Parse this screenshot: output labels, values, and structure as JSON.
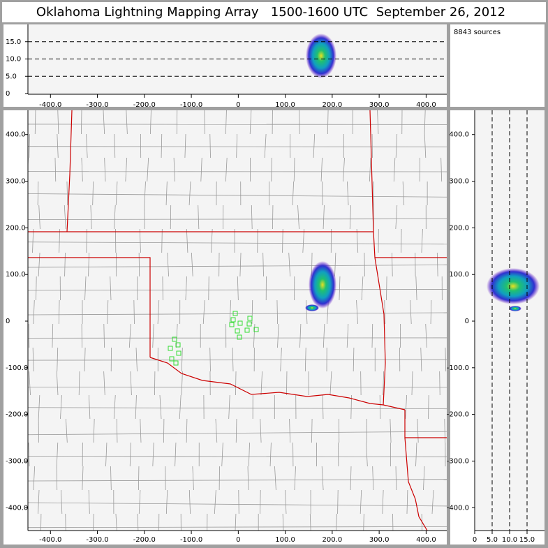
{
  "title": "Oklahoma Lightning Mapping Array   1500-1600 UTC  September 26, 2012",
  "source_count": "8843 sources",
  "altitude_view": {
    "xlim": [
      -448,
      444
    ],
    "ylim": [
      -0.2,
      20
    ],
    "xticks": [
      {
        "value": -400,
        "label": "-400.0"
      },
      {
        "value": -300,
        "label": "-300.0"
      },
      {
        "value": -200,
        "label": "-200.0"
      },
      {
        "value": -100,
        "label": "-100.0"
      },
      0,
      {
        "value": 100,
        "label": "100.0"
      },
      {
        "value": 200,
        "label": "200.0"
      },
      {
        "value": 300,
        "label": "300.0"
      },
      {
        "value": 400,
        "label": "400.0"
      }
    ],
    "yticks": [
      0,
      {
        "value": 5,
        "label": "5.0"
      },
      {
        "value": 10,
        "label": "10.0"
      },
      {
        "value": 15,
        "label": "15.0"
      }
    ],
    "grid": "y"
  },
  "plan_view": {
    "xlim": [
      -448,
      444
    ],
    "ylim": [
      -449,
      452
    ],
    "xticks": [
      {
        "value": -400,
        "label": "-400.0"
      },
      {
        "value": -300,
        "label": "-300.0"
      },
      {
        "value": -200,
        "label": "-200.0"
      },
      {
        "value": -100,
        "label": "-100.0"
      },
      0,
      {
        "value": 100,
        "label": "100.0"
      },
      {
        "value": 200,
        "label": "200.0"
      },
      {
        "value": 300,
        "label": "300.0"
      },
      {
        "value": 400,
        "label": "400.0"
      }
    ],
    "yticks": [
      {
        "value": -400,
        "label": "-400.0"
      },
      {
        "value": -300,
        "label": "-300.0"
      },
      {
        "value": -200,
        "label": "-200.0"
      },
      {
        "value": -100,
        "label": "-100.0"
      },
      0,
      {
        "value": 100,
        "label": "100.0"
      },
      {
        "value": 200,
        "label": "200.0"
      },
      {
        "value": 300,
        "label": "300.0"
      },
      {
        "value": 400,
        "label": "400.0"
      }
    ]
  },
  "height_view": {
    "xlim": [
      0,
      20
    ],
    "ylim": [
      -449,
      452
    ],
    "xticks": [
      0,
      {
        "value": 5,
        "label": "5.0"
      },
      {
        "value": 10,
        "label": "10.0"
      },
      {
        "value": 15,
        "label": "15.0"
      }
    ],
    "yticks": [
      {
        "value": -400,
        "label": "-400.0"
      },
      {
        "value": -300,
        "label": "-300.0"
      },
      {
        "value": -200,
        "label": "-200.0"
      },
      {
        "value": -100,
        "label": "-100.0"
      },
      0,
      {
        "value": 100,
        "label": "100.0"
      },
      {
        "value": 200,
        "label": "200.0"
      },
      {
        "value": 300,
        "label": "300.0"
      },
      {
        "value": 400,
        "label": "400.0"
      }
    ],
    "grid": "x"
  }
}
